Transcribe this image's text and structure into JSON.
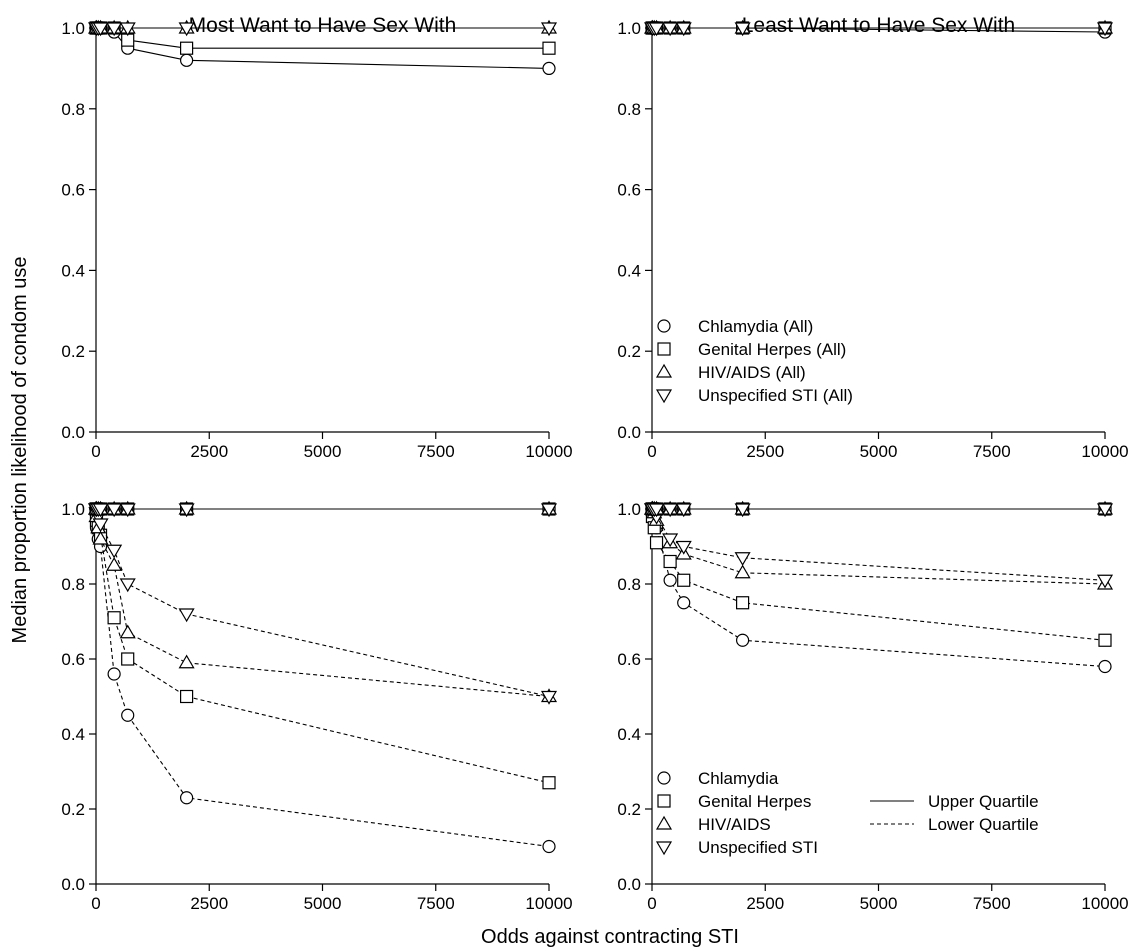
{
  "figure": {
    "ylabel": "Median proportion likelihood of condom use",
    "xlabel": "Odds against contracting STI"
  },
  "chart_data": [
    {
      "type": "line",
      "title": "Most Want to Have Sex With",
      "xlim": [
        0,
        10000
      ],
      "ylim": [
        0,
        1
      ],
      "xticks": [
        0,
        2500,
        5000,
        7500,
        10000
      ],
      "yticks": [
        0.0,
        0.2,
        0.4,
        0.6,
        0.8,
        1.0
      ],
      "xtick_labels": [
        "0",
        "2500",
        "5000",
        "7500",
        "10000"
      ],
      "ytick_labels": [
        "0.0",
        "0.2",
        "0.4",
        "0.6",
        "0.8",
        "1.0"
      ],
      "x": [
        1,
        10,
        50,
        100,
        400,
        700,
        2000,
        10000
      ],
      "series": [
        {
          "marker": "circle",
          "style": "solid",
          "values": [
            1.0,
            1.0,
            1.0,
            1.0,
            0.99,
            0.95,
            0.92,
            0.9
          ]
        },
        {
          "marker": "square",
          "style": "solid",
          "values": [
            1.0,
            1.0,
            1.0,
            1.0,
            1.0,
            0.97,
            0.95,
            0.95
          ]
        },
        {
          "marker": "triangle-up",
          "style": "solid",
          "values": [
            1.0,
            1.0,
            1.0,
            1.0,
            1.0,
            1.0,
            1.0,
            1.0
          ]
        },
        {
          "marker": "triangle-down",
          "style": "solid",
          "values": [
            1.0,
            1.0,
            1.0,
            1.0,
            1.0,
            1.0,
            1.0,
            1.0
          ]
        }
      ],
      "legend": null
    },
    {
      "type": "line",
      "title": "Least Want to Have Sex With",
      "xlim": [
        0,
        10000
      ],
      "ylim": [
        0,
        1
      ],
      "xticks": [
        0,
        2500,
        5000,
        7500,
        10000
      ],
      "yticks": [
        0.0,
        0.2,
        0.4,
        0.6,
        0.8,
        1.0
      ],
      "xtick_labels": [
        "0",
        "2500",
        "5000",
        "7500",
        "10000"
      ],
      "ytick_labels": [
        "0.0",
        "0.2",
        "0.4",
        "0.6",
        "0.8",
        "1.0"
      ],
      "x": [
        1,
        10,
        50,
        100,
        400,
        700,
        2000,
        10000
      ],
      "series": [
        {
          "name": "Chlamydia (All)",
          "marker": "circle",
          "style": "solid",
          "values": [
            1.0,
            1.0,
            1.0,
            1.0,
            1.0,
            1.0,
            1.0,
            0.99
          ]
        },
        {
          "name": "Genital Herpes (All)",
          "marker": "square",
          "style": "solid",
          "values": [
            1.0,
            1.0,
            1.0,
            1.0,
            1.0,
            1.0,
            1.0,
            1.0
          ]
        },
        {
          "name": "HIV/AIDS (All)",
          "marker": "triangle-up",
          "style": "solid",
          "values": [
            1.0,
            1.0,
            1.0,
            1.0,
            1.0,
            1.0,
            1.0,
            1.0
          ]
        },
        {
          "name": "Unspecified STI (All)",
          "marker": "triangle-down",
          "style": "solid",
          "values": [
            1.0,
            1.0,
            1.0,
            1.0,
            1.0,
            1.0,
            1.0,
            1.0
          ]
        }
      ],
      "legend": {
        "placement": "bottom-left",
        "markers": [
          {
            "marker": "circle",
            "label": "Chlamydia (All)"
          },
          {
            "marker": "square",
            "label": "Genital Herpes (All)"
          },
          {
            "marker": "triangle-up",
            "label": "HIV/AIDS (All)"
          },
          {
            "marker": "triangle-down",
            "label": "Unspecified STI (All)"
          }
        ],
        "lines": []
      }
    },
    {
      "type": "line",
      "title": "",
      "xlim": [
        0,
        10000
      ],
      "ylim": [
        0,
        1
      ],
      "xticks": [
        0,
        2500,
        5000,
        7500,
        10000
      ],
      "yticks": [
        0.0,
        0.2,
        0.4,
        0.6,
        0.8,
        1.0
      ],
      "xtick_labels": [
        "0",
        "2500",
        "5000",
        "7500",
        "10000"
      ],
      "ytick_labels": [
        "0.0",
        "0.2",
        "0.4",
        "0.6",
        "0.8",
        "1.0"
      ],
      "x": [
        1,
        10,
        50,
        100,
        400,
        700,
        2000,
        10000
      ],
      "series": [
        {
          "marker": "circle",
          "style": "solid",
          "values": [
            1.0,
            1.0,
            1.0,
            1.0,
            1.0,
            1.0,
            1.0,
            1.0
          ]
        },
        {
          "marker": "square",
          "style": "solid",
          "values": [
            1.0,
            1.0,
            1.0,
            1.0,
            1.0,
            1.0,
            1.0,
            1.0
          ]
        },
        {
          "marker": "triangle-up",
          "style": "solid",
          "values": [
            1.0,
            1.0,
            1.0,
            1.0,
            1.0,
            1.0,
            1.0,
            1.0
          ]
        },
        {
          "marker": "triangle-down",
          "style": "solid",
          "values": [
            1.0,
            1.0,
            1.0,
            1.0,
            1.0,
            1.0,
            1.0,
            1.0
          ]
        },
        {
          "marker": "circle",
          "style": "dashed",
          "values": [
            1.0,
            0.95,
            0.92,
            0.9,
            0.56,
            0.45,
            0.23,
            0.1
          ]
        },
        {
          "marker": "square",
          "style": "dashed",
          "values": [
            1.0,
            0.97,
            0.95,
            0.93,
            0.71,
            0.6,
            0.5,
            0.27
          ]
        },
        {
          "marker": "triangle-up",
          "style": "dashed",
          "values": [
            1.0,
            0.98,
            0.95,
            0.92,
            0.85,
            0.67,
            0.59,
            0.5
          ]
        },
        {
          "marker": "triangle-down",
          "style": "dashed",
          "values": [
            1.0,
            0.99,
            0.98,
            0.96,
            0.89,
            0.8,
            0.72,
            0.5
          ]
        }
      ],
      "legend": null
    },
    {
      "type": "line",
      "title": "",
      "xlim": [
        0,
        10000
      ],
      "ylim": [
        0,
        1
      ],
      "xticks": [
        0,
        2500,
        5000,
        7500,
        10000
      ],
      "yticks": [
        0.0,
        0.2,
        0.4,
        0.6,
        0.8,
        1.0
      ],
      "xtick_labels": [
        "0",
        "2500",
        "5000",
        "7500",
        "10000"
      ],
      "ytick_labels": [
        "0.0",
        "0.2",
        "0.4",
        "0.6",
        "0.8",
        "1.0"
      ],
      "x": [
        1,
        10,
        50,
        100,
        400,
        700,
        2000,
        10000
      ],
      "series": [
        {
          "marker": "circle",
          "style": "solid",
          "values": [
            1.0,
            1.0,
            1.0,
            1.0,
            1.0,
            1.0,
            1.0,
            1.0
          ]
        },
        {
          "marker": "square",
          "style": "solid",
          "values": [
            1.0,
            1.0,
            1.0,
            1.0,
            1.0,
            1.0,
            1.0,
            1.0
          ]
        },
        {
          "marker": "triangle-up",
          "style": "solid",
          "values": [
            1.0,
            1.0,
            1.0,
            1.0,
            1.0,
            1.0,
            1.0,
            1.0
          ]
        },
        {
          "marker": "triangle-down",
          "style": "solid",
          "values": [
            1.0,
            1.0,
            1.0,
            1.0,
            1.0,
            1.0,
            1.0,
            1.0
          ]
        },
        {
          "marker": "circle",
          "style": "dashed",
          "values": [
            1.0,
            0.99,
            0.97,
            0.95,
            0.81,
            0.75,
            0.65,
            0.58
          ]
        },
        {
          "marker": "square",
          "style": "dashed",
          "values": [
            1.0,
            0.98,
            0.95,
            0.91,
            0.86,
            0.81,
            0.75,
            0.65
          ]
        },
        {
          "marker": "triangle-up",
          "style": "dashed",
          "values": [
            1.0,
            1.0,
            0.99,
            0.97,
            0.91,
            0.88,
            0.83,
            0.8
          ]
        },
        {
          "marker": "triangle-down",
          "style": "dashed",
          "values": [
            1.0,
            1.0,
            0.99,
            0.98,
            0.92,
            0.9,
            0.87,
            0.81
          ]
        }
      ],
      "legend": {
        "placement": "bottom-left",
        "markers": [
          {
            "marker": "circle",
            "label": "Chlamydia"
          },
          {
            "marker": "square",
            "label": "Genital Herpes"
          },
          {
            "marker": "triangle-up",
            "label": "HIV/AIDS"
          },
          {
            "marker": "triangle-down",
            "label": "Unspecified STI"
          }
        ],
        "lines": [
          {
            "style": "solid",
            "label": "Upper Quartile"
          },
          {
            "style": "dashed",
            "label": "Lower Quartile"
          }
        ]
      }
    }
  ]
}
